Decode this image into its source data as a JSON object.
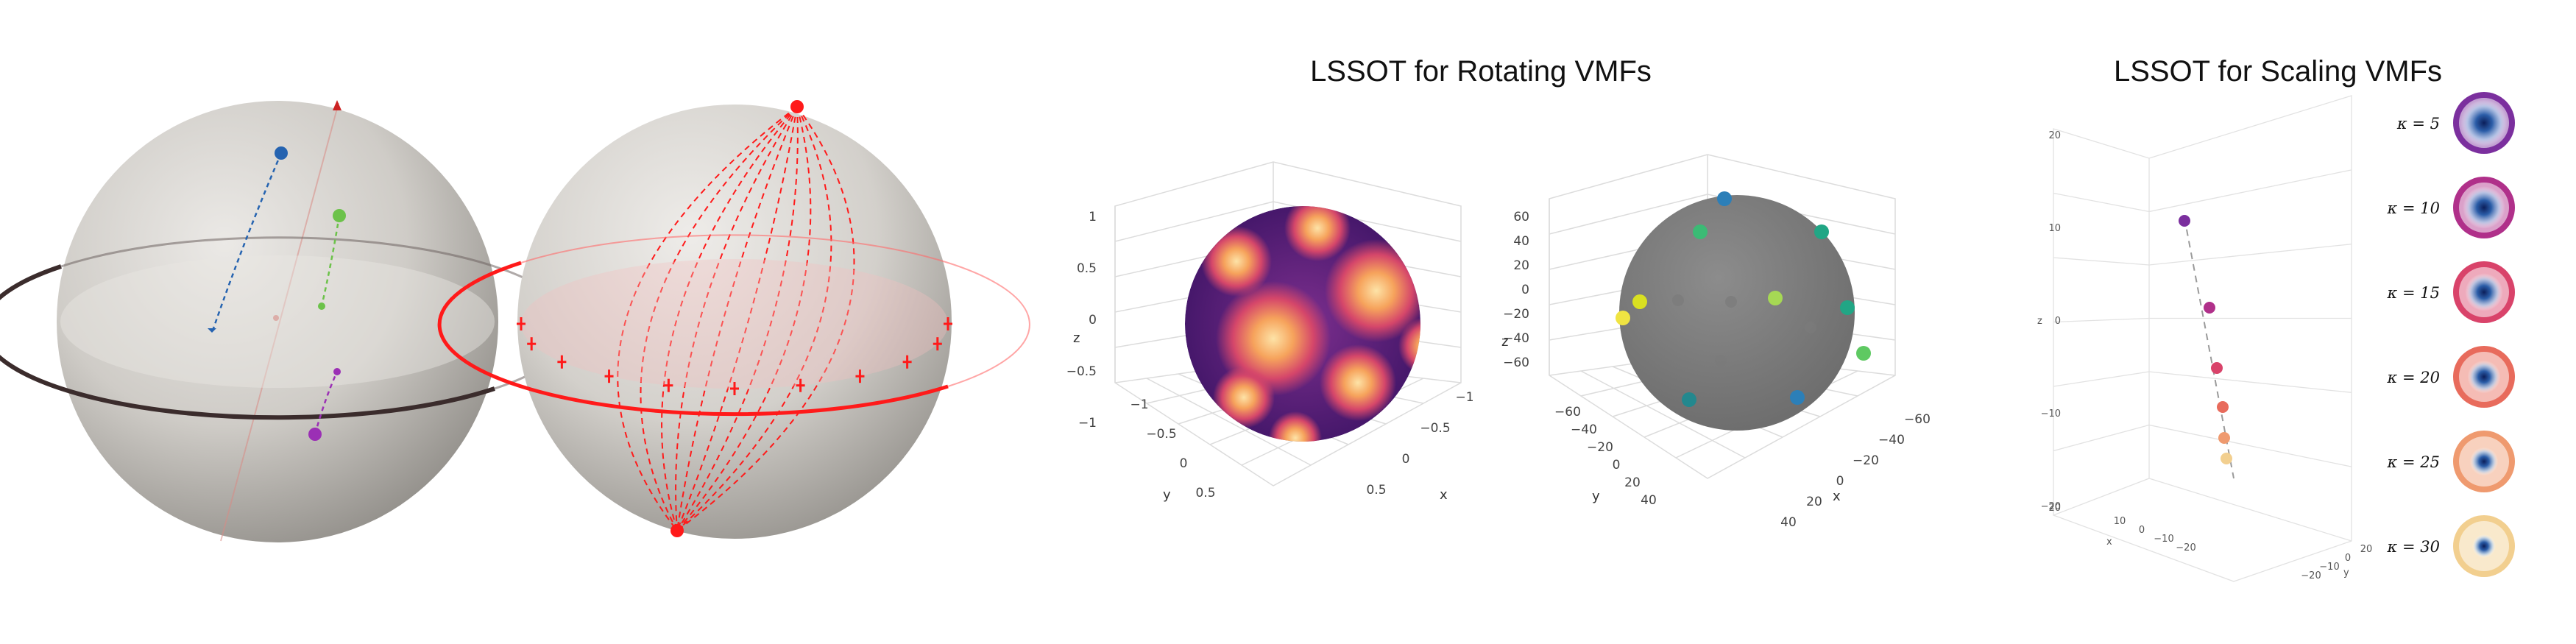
{
  "panel_right_sphere": {
    "title": "LSSOT for Rotating VMFs",
    "left_plot": {
      "z_ticks": [
        "1",
        "0.5",
        "0",
        "−0.5",
        "−1"
      ],
      "y_ticks": [
        "−1",
        "−0.5",
        "0",
        "0.5"
      ],
      "x_ticks": [
        "−1",
        "−0.5",
        "0",
        "0.5"
      ],
      "axis_x": "x",
      "axis_y": "y",
      "axis_z": "z"
    },
    "right_plot": {
      "z_ticks": [
        "60",
        "40",
        "20",
        "0",
        "−20",
        "−40",
        "−60"
      ],
      "y_ticks": [
        "−60",
        "−40",
        "−20",
        "0",
        "20",
        "40"
      ],
      "x_ticks": [
        "−60",
        "−40",
        "−20",
        "0",
        "20",
        "40"
      ],
      "axis_x": "x",
      "axis_y": "y",
      "axis_z": "z",
      "point_colors": [
        "#2c7fb8",
        "#21a685",
        "#3bbb75",
        "#a6d854",
        "#d9e021",
        "#f0e442",
        "#5ec962",
        "#23888e"
      ]
    }
  },
  "panel_scaling": {
    "title": "LSSOT for Scaling VMFs",
    "z_ticks": [
      "20",
      "10",
      "0",
      "−10",
      "−20"
    ],
    "x_ticks": [
      "10",
      "0",
      "−10",
      "−20"
    ],
    "y_ticks": [
      "20",
      "0",
      "−10",
      "−20"
    ],
    "axis_x": "x",
    "axis_y": "y",
    "axis_z": "z",
    "kappa_labels": [
      "κ = 5",
      "κ = 10",
      "κ = 15",
      "κ = 20",
      "κ = 25",
      "κ = 30"
    ],
    "kappa_colors": [
      "#7b2f9e",
      "#b0308a",
      "#d9436a",
      "#e86b5c",
      "#ef9a6f",
      "#f2cf8f"
    ]
  },
  "colors": {
    "sphere_gray": "#c9c6c1",
    "equator_dark": "#3b2c2c",
    "red": "#ff1a1a",
    "blue_point": "#2563b0",
    "green_point": "#6cc24a",
    "purple_point": "#9b2fb5"
  }
}
